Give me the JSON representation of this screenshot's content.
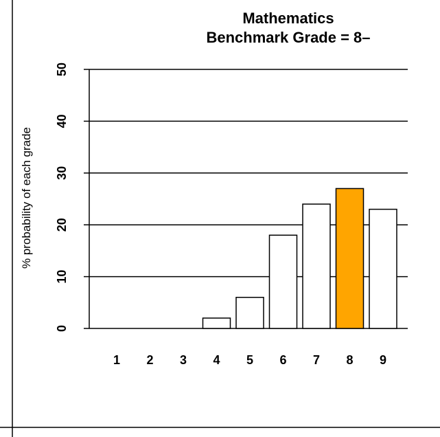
{
  "chart_data": {
    "type": "bar",
    "title": "Mathematics",
    "subtitle": "Benchmark Grade = 8–",
    "xlabel": "",
    "ylabel": "% probability of each grade",
    "categories": [
      "1",
      "2",
      "3",
      "4",
      "5",
      "6",
      "7",
      "8",
      "9"
    ],
    "values": [
      0,
      0,
      0,
      2,
      6,
      18,
      24,
      27,
      23
    ],
    "ylim": [
      0,
      50
    ],
    "yticks": [
      "0",
      "10",
      "20",
      "30",
      "40",
      "50"
    ],
    "grid": "horizontal",
    "highlight_category": "8",
    "colors": {
      "bar": "#ffffff",
      "highlight": "#ffa500",
      "stroke": "#000000"
    }
  }
}
